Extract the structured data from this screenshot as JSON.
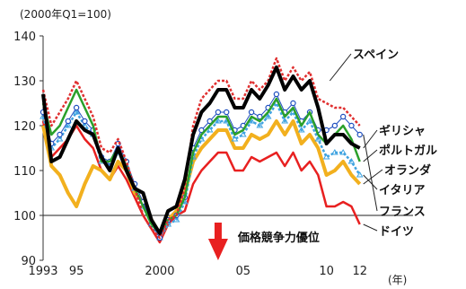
{
  "chart_data": {
    "type": "line",
    "title": "",
    "unit_label": "(2000年Q1=100)",
    "xunit": "(年)",
    "xlabel": "",
    "ylabel": "",
    "xlim": [
      1993,
      2012.5
    ],
    "ylim": [
      90,
      140
    ],
    "yticks": [
      90,
      100,
      110,
      120,
      130,
      140
    ],
    "xtick_labels": [
      {
        "x": 1993,
        "label": "1993"
      },
      {
        "x": 1995,
        "label": "95"
      },
      {
        "x": 2000,
        "label": "2000"
      },
      {
        "x": 2005,
        "label": "05"
      },
      {
        "x": 2010,
        "label": "10"
      },
      {
        "x": 2012,
        "label": "12"
      }
    ],
    "reference_line": 100,
    "annotation": {
      "text": "価格競争力優位",
      "x": 2003.5,
      "y": 96
    },
    "colors": {
      "spain": "#e03030",
      "greece": "#000000",
      "portugal": "#2aa02a",
      "netherlands": "#f2b01e",
      "italy": "#3fa3e0",
      "france": "#2050c0",
      "germany": "#e82020",
      "arrow": "#e82020"
    },
    "series": [
      {
        "name": "スペイン",
        "key": "spain",
        "style": "dashed",
        "x": [
          1993,
          1993.5,
          1994,
          1994.5,
          1995,
          1995.5,
          1996,
          1996.5,
          1997,
          1997.5,
          1998,
          1998.5,
          1999,
          1999.5,
          2000,
          2000.5,
          2001,
          2001.5,
          2002,
          2002.5,
          2003,
          2003.5,
          2004,
          2004.5,
          2005,
          2005.5,
          2006,
          2006.5,
          2007,
          2007.5,
          2008,
          2008.5,
          2009,
          2009.5,
          2010,
          2010.5,
          2011,
          2011.5,
          2012
        ],
        "y": [
          128,
          120,
          123,
          126,
          130,
          126,
          122,
          115,
          114,
          117,
          112,
          106,
          100,
          97,
          95,
          99,
          100,
          106,
          120,
          126,
          128,
          130,
          130,
          126,
          126,
          130,
          128,
          130,
          135,
          130,
          133,
          130,
          132,
          126,
          125,
          124,
          124,
          122,
          120
        ]
      },
      {
        "name": "ギリシャ",
        "key": "greece",
        "style": "solid",
        "x": [
          1993,
          1993.5,
          1994,
          1994.5,
          1995,
          1995.5,
          1996,
          1996.5,
          1997,
          1997.5,
          1998,
          1998.5,
          1999,
          1999.5,
          2000,
          2000.5,
          2001,
          2001.5,
          2002,
          2002.5,
          2003,
          2003.5,
          2004,
          2004.5,
          2005,
          2005.5,
          2006,
          2006.5,
          2007,
          2007.5,
          2008,
          2008.5,
          2009,
          2009.5,
          2010,
          2010.5,
          2011,
          2011.5,
          2012
        ],
        "y": [
          127,
          112,
          113,
          117,
          121,
          119,
          118,
          113,
          110,
          115,
          110,
          106,
          105,
          99,
          96,
          101,
          102,
          108,
          118,
          123,
          125,
          128,
          128,
          124,
          124,
          128,
          126,
          129,
          133,
          128,
          131,
          128,
          130,
          124,
          116,
          118,
          118,
          116,
          115
        ]
      },
      {
        "name": "ポルトガル",
        "key": "portugal",
        "style": "solid",
        "x": [
          1993,
          1993.5,
          1994,
          1994.5,
          1995,
          1995.5,
          1996,
          1996.5,
          1997,
          1997.5,
          1998,
          1998.5,
          1999,
          1999.5,
          2000,
          2000.5,
          2001,
          2001.5,
          2002,
          2002.5,
          2003,
          2003.5,
          2004,
          2004.5,
          2005,
          2005.5,
          2006,
          2006.5,
          2007,
          2007.5,
          2008,
          2008.5,
          2009,
          2009.5,
          2010,
          2010.5,
          2011,
          2011.5,
          2012
        ],
        "y": [
          125,
          118,
          120,
          124,
          128,
          124,
          120,
          112,
          112,
          115,
          111,
          106,
          102,
          98,
          96,
          99,
          100,
          104,
          114,
          118,
          120,
          122,
          122,
          118,
          119,
          122,
          121,
          123,
          126,
          122,
          124,
          120,
          123,
          118,
          116,
          118,
          120,
          117,
          112
        ]
      },
      {
        "name": "オランダ",
        "key": "netherlands",
        "style": "solid",
        "x": [
          1993,
          1993.5,
          1994,
          1994.5,
          1995,
          1995.5,
          1996,
          1996.5,
          1997,
          1997.5,
          1998,
          1998.5,
          1999,
          1999.5,
          2000,
          2000.5,
          2001,
          2001.5,
          2002,
          2002.5,
          2003,
          2003.5,
          2004,
          2004.5,
          2005,
          2005.5,
          2006,
          2006.5,
          2007,
          2007.5,
          2008,
          2008.5,
          2009,
          2009.5,
          2010,
          2010.5,
          2011,
          2011.5,
          2012
        ],
        "y": [
          120,
          111,
          109,
          105,
          102,
          107,
          111,
          110,
          108,
          112,
          110,
          105,
          103,
          99,
          96,
          99,
          101,
          105,
          112,
          115,
          117,
          119,
          119,
          115,
          115,
          118,
          117,
          118,
          121,
          118,
          121,
          116,
          118,
          115,
          109,
          110,
          112,
          109,
          107
        ]
      },
      {
        "name": "イタリア",
        "key": "italy",
        "style": "dashed",
        "x": [
          1993,
          1993.5,
          1994,
          1994.5,
          1995,
          1995.5,
          1996,
          1996.5,
          1997,
          1997.5,
          1998,
          1998.5,
          1999,
          1999.5,
          2000,
          2000.5,
          2001,
          2001.5,
          2002,
          2002.5,
          2003,
          2003.5,
          2004,
          2004.5,
          2005,
          2005.5,
          2006,
          2006.5,
          2007,
          2007.5,
          2008,
          2008.5,
          2009,
          2009.5,
          2010,
          2010.5,
          2011,
          2011.5,
          2012
        ],
        "y": [
          122,
          115,
          117,
          120,
          123,
          120,
          118,
          112,
          111,
          114,
          111,
          106,
          102,
          98,
          95,
          98,
          99,
          103,
          113,
          117,
          119,
          121,
          121,
          117,
          118,
          121,
          120,
          122,
          125,
          121,
          123,
          119,
          121,
          117,
          113,
          114,
          114,
          112,
          109
        ]
      },
      {
        "name": "フランス",
        "key": "france",
        "style": "markers",
        "x": [
          1993,
          1993.5,
          1994,
          1994.5,
          1995,
          1995.5,
          1996,
          1996.5,
          1997,
          1997.5,
          1998,
          1998.5,
          1999,
          1999.5,
          2000,
          2000.5,
          2001,
          2001.5,
          2002,
          2002.5,
          2003,
          2003.5,
          2004,
          2004.5,
          2005,
          2005.5,
          2006,
          2006.5,
          2007,
          2007.5,
          2008,
          2008.5,
          2009,
          2009.5,
          2010,
          2010.5,
          2011,
          2011.5,
          2012
        ],
        "y": [
          123,
          116,
          118,
          121,
          124,
          121,
          119,
          113,
          112,
          116,
          112,
          107,
          103,
          98,
          95,
          99,
          100,
          104,
          115,
          119,
          121,
          123,
          123,
          119,
          120,
          123,
          122,
          124,
          127,
          123,
          125,
          121,
          123,
          119,
          119,
          120,
          122,
          120,
          118
        ]
      },
      {
        "name": "ドイツ",
        "key": "germany",
        "style": "solid",
        "x": [
          1993,
          1993.5,
          1994,
          1994.5,
          1995,
          1995.5,
          1996,
          1996.5,
          1997,
          1997.5,
          1998,
          1998.5,
          1999,
          1999.5,
          2000,
          2000.5,
          2001,
          2001.5,
          2002,
          2002.5,
          2003,
          2003.5,
          2004,
          2004.5,
          2005,
          2005.5,
          2006,
          2006.5,
          2007,
          2007.5,
          2008,
          2008.5,
          2009,
          2009.5,
          2010,
          2010.5,
          2011,
          2011.5,
          2012
        ],
        "y": [
          121,
          113,
          115,
          117,
          120,
          117,
          115,
          110,
          108,
          111,
          108,
          104,
          100,
          97,
          94,
          98,
          100,
          101,
          107,
          110,
          112,
          114,
          114,
          110,
          110,
          113,
          112,
          113,
          114,
          111,
          114,
          110,
          112,
          109,
          102,
          102,
          103,
          102,
          98
        ]
      }
    ],
    "grid": false,
    "legend": "inline labels on right"
  }
}
